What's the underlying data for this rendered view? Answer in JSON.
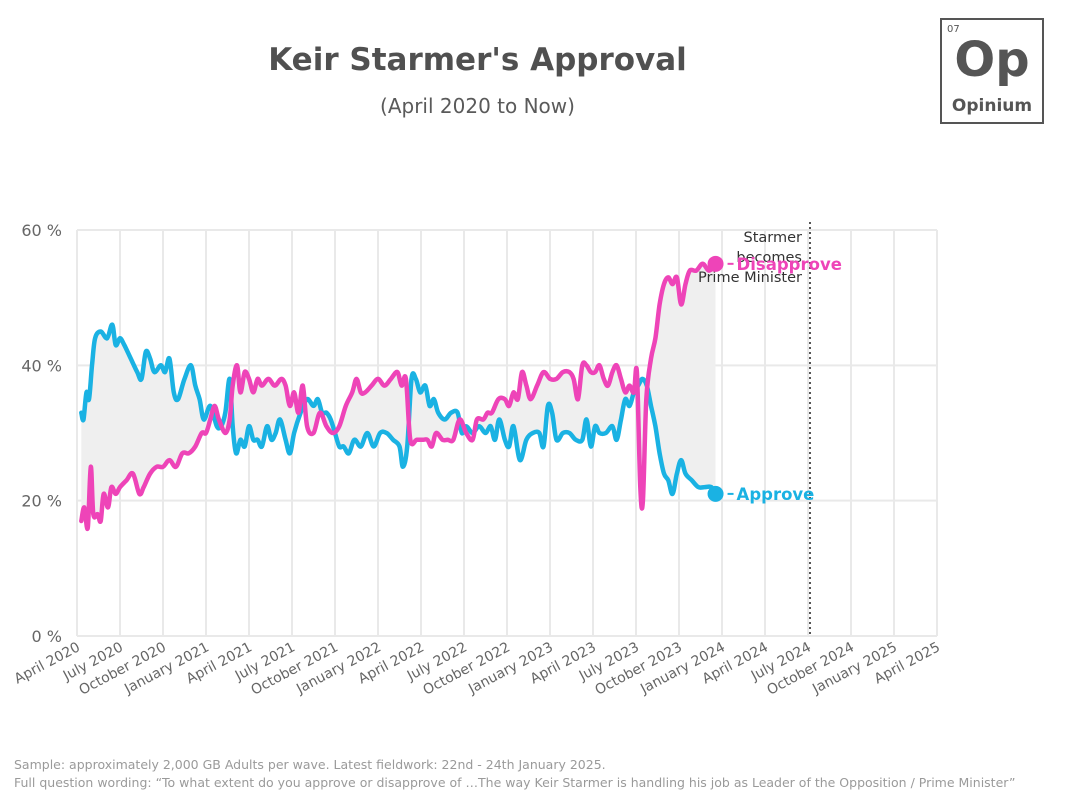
{
  "header": {
    "title": "Keir Starmer's Approval",
    "subtitle": "(April 2020 to Now)"
  },
  "logo": {
    "number": "07",
    "symbol": "Op",
    "name": "Opinium"
  },
  "footer": {
    "sample": "Sample: approximately 2,000 GB Adults per wave. Latest fieldwork: 22nd - 24th January 2025.",
    "question": "Full question wording: “To what extent do you approve or disapprove of …The way Keir Starmer is handling his job as Leader of the Opposition / Prime Minister”"
  },
  "chart_data": {
    "type": "line",
    "title": "Keir Starmer's Approval",
    "subtitle": "(April 2020 to Now)",
    "ylim": [
      0,
      60
    ],
    "y_ticks": [
      0,
      20,
      40,
      60
    ],
    "y_tick_labels": [
      "0 %",
      "20 %",
      "40 %",
      "60 %"
    ],
    "x_ticks": [
      "April 2020",
      "July 2020",
      "October 2020",
      "January 2021",
      "April 2021",
      "July 2021",
      "October 2021",
      "January 2022",
      "April 2022",
      "July 2022",
      "October 2022",
      "January 2023",
      "April 2023",
      "July 2023",
      "October 2023",
      "January 2024",
      "April 2024",
      "July 2024",
      "October 2024",
      "January 2025",
      "April 2025"
    ],
    "grid": true,
    "annotation": {
      "x": "July 2024",
      "lines": [
        "Starmer",
        "becomes",
        "Prime Minister"
      ]
    },
    "colors": {
      "Approve": "#1ab2e3",
      "Disapprove": "#ee44b8",
      "fill": "#efefef",
      "grid": "#e9e9e9"
    },
    "series": [
      {
        "name": "Approve",
        "end_label": "Approve",
        "points": [
          [
            0.1,
            33
          ],
          [
            0.15,
            32
          ],
          [
            0.22,
            36
          ],
          [
            0.28,
            35
          ],
          [
            0.35,
            40
          ],
          [
            0.42,
            44
          ],
          [
            0.55,
            45
          ],
          [
            0.7,
            44
          ],
          [
            0.82,
            46
          ],
          [
            0.9,
            43
          ],
          [
            1.0,
            44
          ],
          [
            1.1,
            43
          ],
          [
            1.25,
            41
          ],
          [
            1.4,
            39
          ],
          [
            1.5,
            38
          ],
          [
            1.6,
            42
          ],
          [
            1.7,
            41
          ],
          [
            1.8,
            39
          ],
          [
            1.95,
            40
          ],
          [
            2.05,
            39
          ],
          [
            2.15,
            41
          ],
          [
            2.25,
            36
          ],
          [
            2.35,
            35
          ],
          [
            2.5,
            38
          ],
          [
            2.65,
            40
          ],
          [
            2.75,
            37
          ],
          [
            2.85,
            35
          ],
          [
            2.95,
            32
          ],
          [
            3.1,
            34
          ],
          [
            3.25,
            31
          ],
          [
            3.35,
            31
          ],
          [
            3.45,
            33
          ],
          [
            3.55,
            38
          ],
          [
            3.62,
            31
          ],
          [
            3.7,
            27
          ],
          [
            3.8,
            29
          ],
          [
            3.9,
            28
          ],
          [
            4.0,
            31
          ],
          [
            4.1,
            29
          ],
          [
            4.2,
            29
          ],
          [
            4.3,
            28
          ],
          [
            4.42,
            31
          ],
          [
            4.52,
            29
          ],
          [
            4.62,
            30
          ],
          [
            4.72,
            32
          ],
          [
            4.85,
            29
          ],
          [
            4.95,
            27
          ],
          [
            5.05,
            30
          ],
          [
            5.2,
            33
          ],
          [
            5.35,
            35
          ],
          [
            5.5,
            34
          ],
          [
            5.6,
            35
          ],
          [
            5.7,
            33
          ],
          [
            5.8,
            33
          ],
          [
            5.9,
            32
          ],
          [
            6.0,
            30
          ],
          [
            6.1,
            28
          ],
          [
            6.2,
            28
          ],
          [
            6.32,
            27
          ],
          [
            6.45,
            29
          ],
          [
            6.6,
            28
          ],
          [
            6.75,
            30
          ],
          [
            6.9,
            28
          ],
          [
            7.05,
            30
          ],
          [
            7.2,
            30
          ],
          [
            7.35,
            29
          ],
          [
            7.5,
            28
          ],
          [
            7.58,
            25
          ],
          [
            7.68,
            28
          ],
          [
            7.78,
            38
          ],
          [
            7.88,
            38
          ],
          [
            7.98,
            36
          ],
          [
            8.1,
            37
          ],
          [
            8.2,
            34
          ],
          [
            8.3,
            35
          ],
          [
            8.4,
            33
          ],
          [
            8.55,
            32
          ],
          [
            8.7,
            33
          ],
          [
            8.85,
            33
          ],
          [
            8.95,
            30
          ],
          [
            9.05,
            31
          ],
          [
            9.2,
            30
          ],
          [
            9.35,
            31
          ],
          [
            9.5,
            30
          ],
          [
            9.62,
            31
          ],
          [
            9.72,
            29
          ],
          [
            9.82,
            32
          ],
          [
            9.95,
            29
          ],
          [
            10.05,
            28
          ],
          [
            10.15,
            31
          ],
          [
            10.3,
            26
          ],
          [
            10.45,
            29
          ],
          [
            10.6,
            30
          ],
          [
            10.75,
            30
          ],
          [
            10.85,
            28
          ],
          [
            10.95,
            34
          ],
          [
            11.05,
            33
          ],
          [
            11.15,
            29
          ],
          [
            11.3,
            30
          ],
          [
            11.45,
            30
          ],
          [
            11.6,
            29
          ],
          [
            11.75,
            29
          ],
          [
            11.85,
            32
          ],
          [
            11.95,
            28
          ],
          [
            12.05,
            31
          ],
          [
            12.15,
            30
          ],
          [
            12.3,
            30
          ],
          [
            12.45,
            31
          ],
          [
            12.55,
            29
          ],
          [
            12.65,
            32
          ],
          [
            12.75,
            35
          ],
          [
            12.85,
            34
          ],
          [
            12.95,
            36
          ],
          [
            13.05,
            37
          ],
          [
            13.15,
            38
          ],
          [
            13.25,
            37
          ],
          [
            13.35,
            34
          ],
          [
            13.45,
            31
          ],
          [
            13.55,
            27
          ],
          [
            13.65,
            24
          ],
          [
            13.75,
            23
          ],
          [
            13.85,
            21
          ],
          [
            13.95,
            24
          ],
          [
            14.05,
            26
          ],
          [
            14.15,
            24
          ],
          [
            14.3,
            23
          ],
          [
            14.45,
            22
          ],
          [
            14.6,
            22
          ],
          [
            14.75,
            22
          ],
          [
            14.85,
            21
          ]
        ]
      },
      {
        "name": "Disapprove",
        "end_label": "Disapprove",
        "points": [
          [
            0.1,
            17
          ],
          [
            0.17,
            19
          ],
          [
            0.25,
            16
          ],
          [
            0.32,
            25
          ],
          [
            0.38,
            18
          ],
          [
            0.48,
            18
          ],
          [
            0.55,
            17
          ],
          [
            0.62,
            21
          ],
          [
            0.72,
            19
          ],
          [
            0.8,
            22
          ],
          [
            0.9,
            21
          ],
          [
            1.0,
            22
          ],
          [
            1.15,
            23
          ],
          [
            1.3,
            24
          ],
          [
            1.45,
            21
          ],
          [
            1.55,
            22
          ],
          [
            1.7,
            24
          ],
          [
            1.85,
            25
          ],
          [
            2.0,
            25
          ],
          [
            2.15,
            26
          ],
          [
            2.3,
            25
          ],
          [
            2.45,
            27
          ],
          [
            2.6,
            27
          ],
          [
            2.75,
            28
          ],
          [
            2.9,
            30
          ],
          [
            3.0,
            30
          ],
          [
            3.1,
            32
          ],
          [
            3.2,
            34
          ],
          [
            3.3,
            32
          ],
          [
            3.45,
            30
          ],
          [
            3.55,
            32
          ],
          [
            3.62,
            37
          ],
          [
            3.72,
            40
          ],
          [
            3.8,
            36
          ],
          [
            3.9,
            39
          ],
          [
            4.0,
            38
          ],
          [
            4.1,
            36
          ],
          [
            4.2,
            38
          ],
          [
            4.3,
            37
          ],
          [
            4.45,
            38
          ],
          [
            4.6,
            37
          ],
          [
            4.75,
            38
          ],
          [
            4.85,
            37
          ],
          [
            4.95,
            34
          ],
          [
            5.05,
            36
          ],
          [
            5.15,
            33
          ],
          [
            5.25,
            37
          ],
          [
            5.35,
            31
          ],
          [
            5.5,
            30
          ],
          [
            5.65,
            33
          ],
          [
            5.8,
            31
          ],
          [
            5.95,
            30
          ],
          [
            6.1,
            31
          ],
          [
            6.25,
            34
          ],
          [
            6.4,
            36
          ],
          [
            6.5,
            38
          ],
          [
            6.6,
            36
          ],
          [
            6.7,
            36
          ],
          [
            6.85,
            37
          ],
          [
            7.0,
            38
          ],
          [
            7.15,
            37
          ],
          [
            7.3,
            38
          ],
          [
            7.45,
            39
          ],
          [
            7.55,
            37
          ],
          [
            7.65,
            38
          ],
          [
            7.75,
            29
          ],
          [
            7.9,
            29
          ],
          [
            8.05,
            29
          ],
          [
            8.15,
            29
          ],
          [
            8.25,
            28
          ],
          [
            8.35,
            30
          ],
          [
            8.5,
            29
          ],
          [
            8.62,
            29
          ],
          [
            8.75,
            29
          ],
          [
            8.9,
            32
          ],
          [
            9.05,
            30
          ],
          [
            9.2,
            29
          ],
          [
            9.3,
            32
          ],
          [
            9.45,
            32
          ],
          [
            9.55,
            33
          ],
          [
            9.65,
            33
          ],
          [
            9.8,
            35
          ],
          [
            9.95,
            35
          ],
          [
            10.05,
            34
          ],
          [
            10.15,
            36
          ],
          [
            10.25,
            35
          ],
          [
            10.35,
            39
          ],
          [
            10.45,
            37
          ],
          [
            10.55,
            35
          ],
          [
            10.7,
            37
          ],
          [
            10.85,
            39
          ],
          [
            11.0,
            38
          ],
          [
            11.15,
            38
          ],
          [
            11.3,
            39
          ],
          [
            11.45,
            39
          ],
          [
            11.55,
            38
          ],
          [
            11.65,
            35
          ],
          [
            11.75,
            40
          ],
          [
            11.85,
            40
          ],
          [
            11.95,
            39
          ],
          [
            12.05,
            39
          ],
          [
            12.15,
            40
          ],
          [
            12.25,
            38
          ],
          [
            12.35,
            37
          ],
          [
            12.45,
            39
          ],
          [
            12.55,
            40
          ],
          [
            12.65,
            38
          ],
          [
            12.75,
            36
          ],
          [
            12.85,
            37
          ],
          [
            12.95,
            36
          ],
          [
            13.02,
            39
          ],
          [
            13.1,
            22
          ],
          [
            13.16,
            20
          ],
          [
            13.24,
            35
          ],
          [
            13.35,
            41
          ],
          [
            13.45,
            44
          ],
          [
            13.55,
            49
          ],
          [
            13.65,
            52
          ],
          [
            13.75,
            53
          ],
          [
            13.85,
            52
          ],
          [
            13.95,
            53
          ],
          [
            14.05,
            49
          ],
          [
            14.15,
            52
          ],
          [
            14.25,
            54
          ],
          [
            14.4,
            54
          ],
          [
            14.55,
            55
          ],
          [
            14.7,
            54
          ],
          [
            14.85,
            55
          ]
        ]
      }
    ]
  }
}
